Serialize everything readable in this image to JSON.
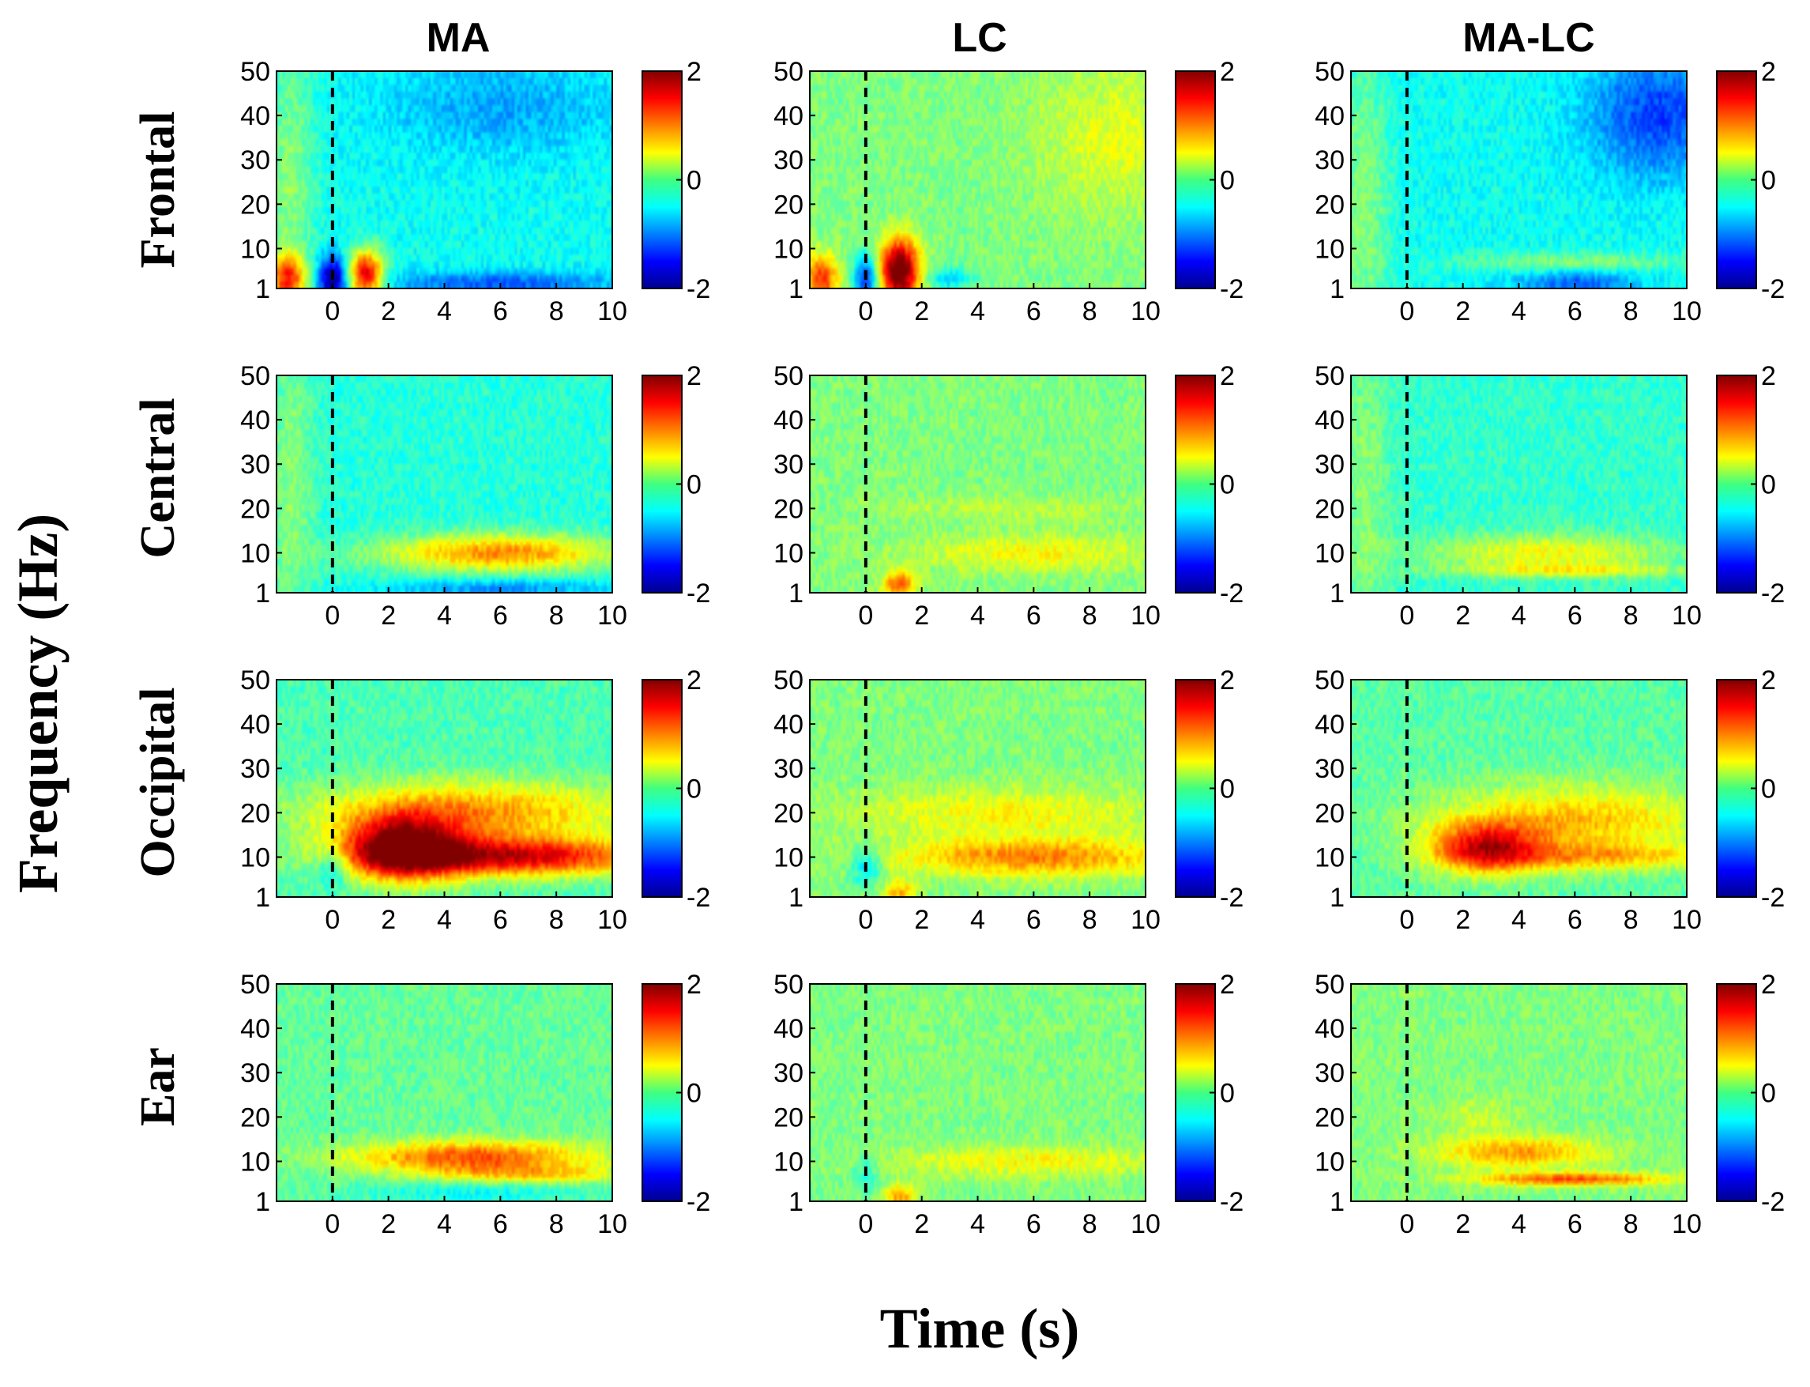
{
  "figure": {
    "column_titles": [
      "MA",
      "LC",
      "MA-LC"
    ],
    "row_labels": [
      "Frontal",
      "Central",
      "Occipital",
      "Ear"
    ],
    "ylabel": "Frequency (Hz)",
    "xlabel": "Time (s)"
  },
  "chart_data": {
    "type": "heatmap",
    "description_axes": "time-frequency power maps",
    "columns": [
      "MA",
      "LC",
      "MA-LC"
    ],
    "rows": [
      "Frontal",
      "Central",
      "Occipital",
      "Ear"
    ],
    "xlabel": "Time (s)",
    "ylabel": "Frequency (Hz)",
    "xlim": [
      -2,
      10
    ],
    "ylim": [
      1,
      50
    ],
    "xticks": [
      0,
      2,
      4,
      6,
      8,
      10
    ],
    "xtick_labels": [
      "0",
      "2",
      "4",
      "6",
      "8",
      "10"
    ],
    "yticks": [
      1,
      10,
      20,
      30,
      40,
      50
    ],
    "ytick_labels": [
      "1",
      "10",
      "20",
      "30",
      "40",
      "50"
    ],
    "event_marker_time": 0,
    "colorbar": {
      "min": -2,
      "max": 2,
      "ticks": [
        -2,
        0,
        2
      ],
      "tick_labels": [
        "-2",
        "0",
        "2"
      ],
      "colormap": "jet"
    },
    "panels": [
      {
        "row": "Frontal",
        "col": "MA",
        "baseline": -0.45,
        "components": [
          {
            "t": -1.6,
            "f": 3,
            "st": 0.45,
            "sf": 4,
            "a": 1.6
          },
          {
            "t": 0,
            "f": 3,
            "st": 0.35,
            "sf": 4,
            "a": -1.5
          },
          {
            "t": 1.2,
            "f": 4,
            "st": 0.45,
            "sf": 4,
            "a": 2.1
          },
          {
            "t": 6,
            "f": 42,
            "st": 3,
            "sf": 8,
            "a": -0.4
          },
          {
            "t": 6,
            "f": 2,
            "st": 3,
            "sf": 2,
            "a": -0.7
          },
          {
            "t": -1.5,
            "f": 25,
            "st": 0.6,
            "sf": 25,
            "a": 0.5
          }
        ]
      },
      {
        "row": "Frontal",
        "col": "LC",
        "baseline": 0.0,
        "components": [
          {
            "t": -1.6,
            "f": 3,
            "st": 0.45,
            "sf": 4,
            "a": 1.3
          },
          {
            "t": 0,
            "f": 3,
            "st": 0.3,
            "sf": 4,
            "a": -1.4
          },
          {
            "t": 1.2,
            "f": 5,
            "st": 0.5,
            "sf": 5,
            "a": 2.3
          },
          {
            "t": 9,
            "f": 35,
            "st": 2,
            "sf": 12,
            "a": 0.4
          },
          {
            "t": 3,
            "f": 3,
            "st": 0.6,
            "sf": 2,
            "a": -0.6
          }
        ]
      },
      {
        "row": "Frontal",
        "col": "MA-LC",
        "baseline": -0.45,
        "components": [
          {
            "t": 9,
            "f": 40,
            "st": 1.8,
            "sf": 10,
            "a": -0.8
          },
          {
            "t": 6,
            "f": 2,
            "st": 1.5,
            "sf": 2,
            "a": -0.7
          },
          {
            "t": 6,
            "f": 7,
            "st": 3,
            "sf": 1.5,
            "a": 0.5
          },
          {
            "t": -1.5,
            "f": 20,
            "st": 0.6,
            "sf": 25,
            "a": 0.5
          }
        ]
      },
      {
        "row": "Central",
        "col": "MA",
        "baseline": -0.35,
        "components": [
          {
            "t": 6,
            "f": 10,
            "st": 3,
            "sf": 3,
            "a": 1.3
          },
          {
            "t": 6,
            "f": 2,
            "st": 3,
            "sf": 1.5,
            "a": -0.6
          },
          {
            "t": -1.5,
            "f": 25,
            "st": 0.6,
            "sf": 25,
            "a": 0.4
          }
        ]
      },
      {
        "row": "Central",
        "col": "LC",
        "baseline": 0.0,
        "components": [
          {
            "t": 6,
            "f": 10,
            "st": 3,
            "sf": 3,
            "a": 0.5
          },
          {
            "t": 1.2,
            "f": 3,
            "st": 0.4,
            "sf": 2,
            "a": 1.2
          },
          {
            "t": 5,
            "f": 20,
            "st": 3,
            "sf": 2,
            "a": 0.25
          }
        ]
      },
      {
        "row": "Central",
        "col": "MA-LC",
        "baseline": -0.3,
        "components": [
          {
            "t": 5,
            "f": 10,
            "st": 3,
            "sf": 3,
            "a": 0.8
          },
          {
            "t": 6,
            "f": 6,
            "st": 3,
            "sf": 1,
            "a": 0.6
          },
          {
            "t": -1.5,
            "f": 25,
            "st": 0.6,
            "sf": 25,
            "a": 0.35
          }
        ]
      },
      {
        "row": "Occipital",
        "col": "MA",
        "baseline": -0.2,
        "components": [
          {
            "t": 2.5,
            "f": 12,
            "st": 1.5,
            "sf": 5,
            "a": 2.1
          },
          {
            "t": 6.5,
            "f": 10,
            "st": 3.5,
            "sf": 3,
            "a": 1.8
          },
          {
            "t": 5,
            "f": 20,
            "st": 4,
            "sf": 5,
            "a": 1.1
          },
          {
            "t": 0,
            "f": 8,
            "st": 0.4,
            "sf": 3,
            "a": -0.7
          }
        ]
      },
      {
        "row": "Occipital",
        "col": "LC",
        "baseline": 0.0,
        "components": [
          {
            "t": 6,
            "f": 10,
            "st": 3.5,
            "sf": 3,
            "a": 1.0
          },
          {
            "t": 5,
            "f": 20,
            "st": 4,
            "sf": 4,
            "a": 0.5
          },
          {
            "t": 0,
            "f": 8,
            "st": 0.4,
            "sf": 3,
            "a": -0.7
          },
          {
            "t": 1.2,
            "f": 2,
            "st": 0.4,
            "sf": 2,
            "a": 0.8
          }
        ]
      },
      {
        "row": "Occipital",
        "col": "MA-LC",
        "baseline": -0.15,
        "components": [
          {
            "t": 2.8,
            "f": 12,
            "st": 1.4,
            "sf": 4,
            "a": 1.5
          },
          {
            "t": 6,
            "f": 18,
            "st": 3.5,
            "sf": 6,
            "a": 0.9
          },
          {
            "t": 7,
            "f": 10,
            "st": 3,
            "sf": 2,
            "a": 0.7
          }
        ]
      },
      {
        "row": "Ear",
        "col": "MA",
        "baseline": -0.1,
        "components": [
          {
            "t": 5,
            "f": 11,
            "st": 3,
            "sf": 2.5,
            "a": 1.3
          },
          {
            "t": 7,
            "f": 7,
            "st": 2.5,
            "sf": 1.5,
            "a": 0.7
          },
          {
            "t": 5,
            "f": 3,
            "st": 3,
            "sf": 2,
            "a": -0.4
          }
        ]
      },
      {
        "row": "Ear",
        "col": "LC",
        "baseline": 0.0,
        "components": [
          {
            "t": 6,
            "f": 10,
            "st": 3.5,
            "sf": 2.5,
            "a": 0.5
          },
          {
            "t": 1.2,
            "f": 2,
            "st": 0.4,
            "sf": 2,
            "a": 0.9
          },
          {
            "t": 0,
            "f": 8,
            "st": 0.3,
            "sf": 3,
            "a": -0.4
          }
        ]
      },
      {
        "row": "Ear",
        "col": "MA-LC",
        "baseline": 0.0,
        "components": [
          {
            "t": 4,
            "f": 12,
            "st": 2,
            "sf": 2.5,
            "a": 0.9
          },
          {
            "t": 6,
            "f": 6,
            "st": 2.5,
            "sf": 1,
            "a": 1.2
          },
          {
            "t": 2.5,
            "f": 20,
            "st": 1,
            "sf": 3,
            "a": 0.3
          }
        ]
      }
    ]
  }
}
